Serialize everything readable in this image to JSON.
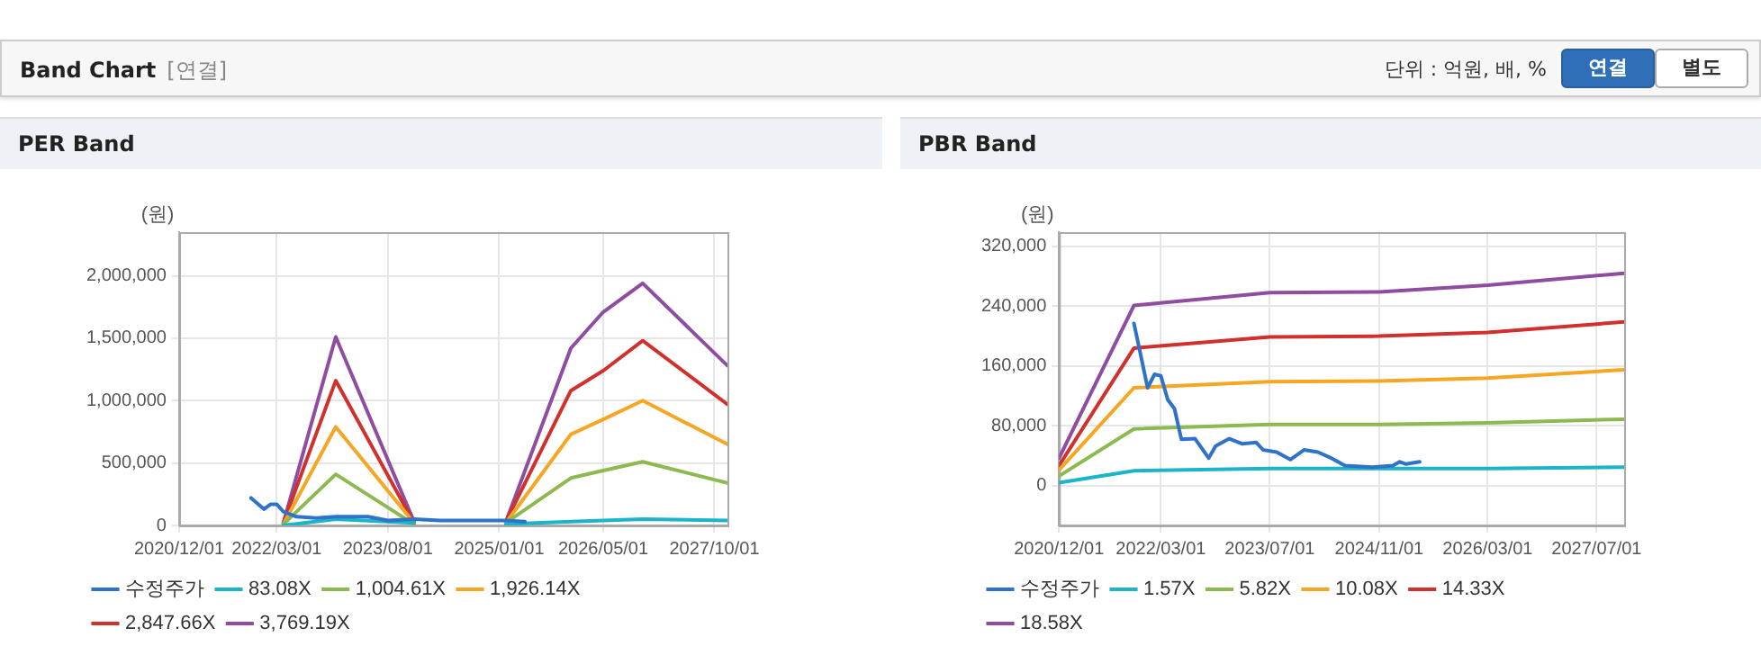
{
  "chart_data": [
    {
      "type": "other",
      "title": "Band Chart",
      "annotations": [
        "[연결]",
        "단위 : 억원, 배, %",
        "연결",
        "별도"
      ]
    },
    {
      "type": "line",
      "title": "PER Band",
      "ylabel": "(원)",
      "legend": "bottom",
      "grid": true,
      "marker": "none",
      "line_style": "solid",
      "xlim": [
        "2020-12-01",
        "2027-12-01"
      ],
      "xticks": [
        {
          "value": "2020-12-01",
          "label": "2020/12/01"
        },
        {
          "value": "2022-03-01",
          "label": "2022/03/01"
        },
        {
          "value": "2023-08-01",
          "label": "2023/08/01"
        },
        {
          "value": "2025-01-01",
          "label": "2025/01/01"
        },
        {
          "value": "2026-05-01",
          "label": "2026/05/01"
        },
        {
          "value": "2027-10-01",
          "label": "2027/10/01"
        }
      ],
      "ylim": [
        0,
        2350000
      ],
      "yticks": [
        0,
        {
          "value": 500000,
          "label": "500,000"
        },
        {
          "value": 1000000,
          "label": "1,000,000"
        },
        {
          "value": 1500000,
          "label": "1,500,000"
        },
        {
          "value": 2000000,
          "label": "2,000,000"
        }
      ],
      "series": [
        {
          "name": "수정주가",
          "color": "#2f72c9",
          "x": [
            "2021-11",
            "2022-01",
            "2022-02",
            "2022-03",
            "2022-04",
            "2022-06",
            "2022-09",
            "2022-12",
            "2023-05",
            "2023-08",
            "2023-12",
            "2024-04",
            "2025-02",
            "2025-05"
          ],
          "values": [
            220000,
            130000,
            170000,
            170000,
            110000,
            70000,
            60000,
            70000,
            70000,
            40000,
            50000,
            40000,
            40000,
            30000
          ]
        },
        {
          "name": "83.08X",
          "color": "#1cb4c9",
          "x": [
            "2022-04",
            "2022-12",
            "2023-12",
            "2024-06",
            "2025-02",
            "2025-12",
            "2026-11",
            "2027-12"
          ],
          "values": [
            0,
            50000,
            20000,
            null,
            10000,
            30000,
            50000,
            40000
          ]
        },
        {
          "name": "1,004.61X",
          "color": "#8cba51",
          "x": [
            "2022-04",
            "2022-12",
            "2023-12",
            "2024-06",
            "2025-02",
            "2025-12",
            "2026-05",
            "2026-11",
            "2027-12"
          ],
          "values": [
            10000,
            410000,
            10000,
            null,
            20000,
            380000,
            440000,
            510000,
            340000
          ]
        },
        {
          "name": "1,926.14X",
          "color": "#f5a623",
          "x": [
            "2022-04",
            "2022-12",
            "2023-12",
            "2024-06",
            "2025-02",
            "2025-12",
            "2026-05",
            "2026-11",
            "2027-12"
          ],
          "values": [
            10000,
            790000,
            20000,
            null,
            20000,
            730000,
            850000,
            1000000,
            650000
          ]
        },
        {
          "name": "2,847.66X",
          "color": "#d0312d",
          "x": [
            "2022-04",
            "2022-12",
            "2023-12",
            "2024-06",
            "2025-02",
            "2025-12",
            "2026-05",
            "2026-11",
            "2027-12"
          ],
          "values": [
            20000,
            1160000,
            20000,
            null,
            30000,
            1080000,
            1240000,
            1480000,
            970000
          ]
        },
        {
          "name": "3,769.19X",
          "color": "#8e4da0",
          "x": [
            "2022-04",
            "2022-12",
            "2023-12",
            "2024-06",
            "2025-02",
            "2025-12",
            "2026-05",
            "2026-11",
            "2027-12"
          ],
          "values": [
            20000,
            1510000,
            30000,
            null,
            30000,
            1420000,
            1710000,
            1940000,
            1280000
          ]
        }
      ]
    },
    {
      "type": "line",
      "title": "PBR Band",
      "ylabel": "(원)",
      "legend": "bottom",
      "grid": true,
      "marker": "none",
      "line_style": "solid",
      "xlim": [
        "2020-12-01",
        "2027-11-01"
      ],
      "xticks": [
        {
          "value": "2020-12-01",
          "label": "2020/12/01"
        },
        {
          "value": "2022-03-01",
          "label": "2022/03/01"
        },
        {
          "value": "2023-07-01",
          "label": "2023/07/01"
        },
        {
          "value": "2024-11-01",
          "label": "2024/11/01"
        },
        {
          "value": "2026-03-01",
          "label": "2026/03/01"
        },
        {
          "value": "2027-07-01",
          "label": "2027/07/01"
        }
      ],
      "ylim": [
        -53000,
        339000
      ],
      "yticks": [
        0,
        {
          "value": 80000,
          "label": "80,000"
        },
        {
          "value": 160000,
          "label": "160,000"
        },
        {
          "value": 240000,
          "label": "240,000"
        },
        {
          "value": 320000,
          "label": "320,000"
        }
      ],
      "series": [
        {
          "name": "수정주가",
          "color": "#2f72c9",
          "x": [
            "2021-11",
            "2022-01",
            "2022-02",
            "2022-03",
            "2022-04",
            "2022-05",
            "2022-06",
            "2022-08",
            "2022-10",
            "2022-11",
            "2023-01",
            "2023-03",
            "2023-05",
            "2023-06",
            "2023-08",
            "2023-10",
            "2023-12",
            "2024-02",
            "2024-04",
            "2024-06",
            "2024-10",
            "2025-01",
            "2025-02",
            "2025-03",
            "2025-05"
          ],
          "values": [
            217000,
            131000,
            149000,
            147000,
            115000,
            103000,
            62000,
            63000,
            37000,
            53000,
            63000,
            56000,
            58000,
            48000,
            45000,
            35000,
            48000,
            45000,
            37000,
            27000,
            25000,
            27000,
            32000,
            29000,
            32000
          ]
        },
        {
          "name": "1.57X",
          "color": "#1cb4c9",
          "x": [
            "2020-12",
            "2021-11",
            "2023-07",
            "2024-11",
            "2026-03",
            "2027-11"
          ],
          "values": [
            4000,
            20000,
            23000,
            23000,
            23000,
            25000
          ]
        },
        {
          "name": "5.82X",
          "color": "#8cba51",
          "x": [
            "2020-12",
            "2021-11",
            "2023-07",
            "2024-11",
            "2026-03",
            "2027-11"
          ],
          "values": [
            13000,
            76000,
            82000,
            82000,
            84000,
            89000
          ]
        },
        {
          "name": "10.08X",
          "color": "#f5a623",
          "x": [
            "2020-12",
            "2021-11",
            "2023-07",
            "2024-11",
            "2026-03",
            "2027-11"
          ],
          "values": [
            21000,
            131000,
            139000,
            140000,
            144000,
            155000
          ]
        },
        {
          "name": "14.33X",
          "color": "#d0312d",
          "x": [
            "2020-12",
            "2021-11",
            "2023-07",
            "2024-11",
            "2026-03",
            "2027-11"
          ],
          "values": [
            27000,
            184000,
            199000,
            200000,
            205000,
            219000
          ]
        },
        {
          "name": "18.58X",
          "color": "#8e4da0",
          "x": [
            "2020-12",
            "2021-11",
            "2023-07",
            "2024-11",
            "2026-03",
            "2027-11"
          ],
          "values": [
            37000,
            241000,
            258000,
            259000,
            268000,
            284000
          ]
        }
      ]
    }
  ]
}
